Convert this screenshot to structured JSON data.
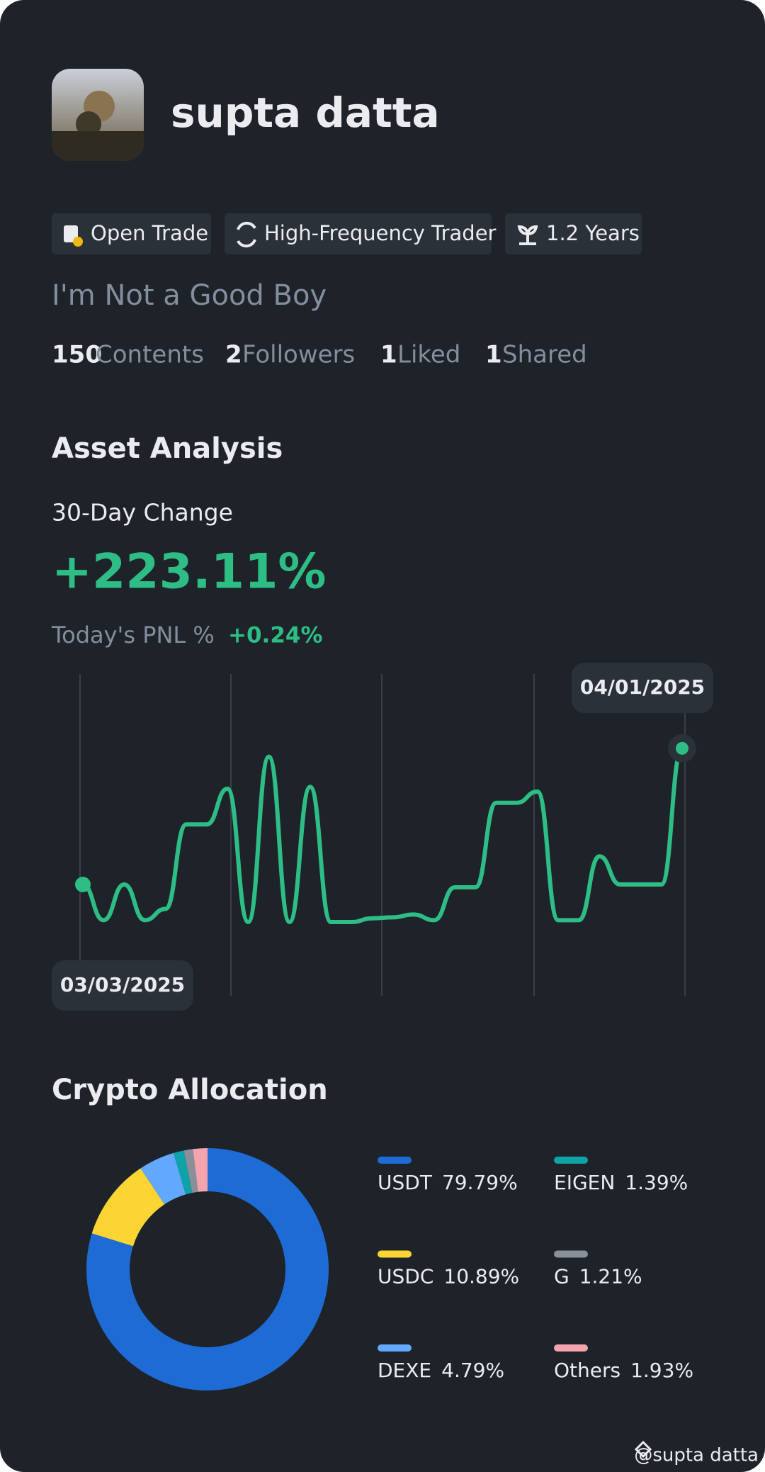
{
  "profile": {
    "name": "supta datta",
    "tags": [
      "Open Trade",
      "High-Frequency Trader",
      "1.2 Years"
    ],
    "bio": "I'm Not a Good Boy",
    "stats": [
      {
        "value": 150,
        "label": "Contents"
      },
      {
        "value": 2,
        "label": "Followers"
      },
      {
        "value": 1,
        "label": "Liked"
      },
      {
        "value": 1,
        "label": "Shared"
      }
    ]
  },
  "asset_analysis": {
    "title": "Asset Analysis",
    "change_label": "30-Day Change",
    "change_value": "+223.11%",
    "pnl_label": "Today's PNL %",
    "pnl_value": "+0.24%"
  },
  "chart_data": [
    {
      "type": "line",
      "color": "#2ebd85",
      "categories": [
        "03/03/2025",
        null,
        null,
        null,
        null,
        null,
        null,
        null,
        null,
        null,
        null,
        null,
        null,
        null,
        null,
        null,
        null,
        null,
        null,
        null,
        null,
        null,
        null,
        null,
        null,
        null,
        null,
        null,
        null,
        "04/01/2025"
      ],
      "values": [
        40,
        2,
        40,
        2,
        14,
        104,
        104,
        142,
        0,
        176,
        0,
        144,
        0,
        0,
        4,
        5,
        8,
        2,
        37,
        37,
        127,
        127,
        139,
        2,
        2,
        70,
        40,
        40,
        40,
        185
      ]
    },
    {
      "type": "pie",
      "title": "Crypto Allocation",
      "categories": [
        "USDT",
        "USDC",
        "DEXE",
        "EIGEN",
        "G",
        "Others"
      ],
      "values": [
        79.79,
        10.89,
        4.79,
        1.39,
        1.21,
        1.93
      ],
      "value_labels": [
        "79.79%",
        "10.89%",
        "4.79%",
        "1.39%",
        "1.21%",
        "1.93%"
      ],
      "colors": [
        "#1e6bd6",
        "#fcd535",
        "#62a8ff",
        "#0fa3a8",
        "#8a9099",
        "#f5a3ad"
      ]
    }
  ],
  "watermark": "@supta datta"
}
